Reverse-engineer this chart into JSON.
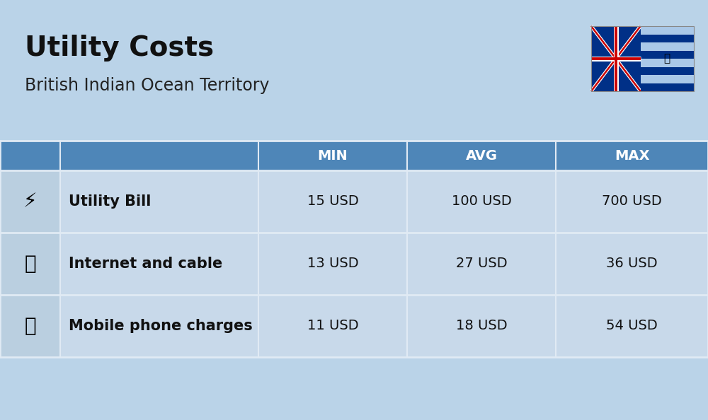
{
  "title": "Utility Costs",
  "subtitle": "British Indian Ocean Territory",
  "background_color": "#bad3e8",
  "header_color": "#4e86b8",
  "header_text_color": "#ffffff",
  "row_light_color": "#c8d9ea",
  "icon_col_color": "#bacfe0",
  "table_border_color": "#e0eaf4",
  "title_color": "#111111",
  "subtitle_color": "#222222",
  "rows": [
    {
      "label": "Utility Bill",
      "min": "15 USD",
      "avg": "100 USD",
      "max": "700 USD"
    },
    {
      "label": "Internet and cable",
      "min": "13 USD",
      "avg": "27 USD",
      "max": "36 USD"
    },
    {
      "label": "Mobile phone charges",
      "min": "11 USD",
      "avg": "18 USD",
      "max": "54 USD"
    }
  ],
  "title_fontsize": 28,
  "subtitle_fontsize": 17,
  "header_fontsize": 14,
  "cell_fontsize": 14,
  "label_fontsize": 15
}
